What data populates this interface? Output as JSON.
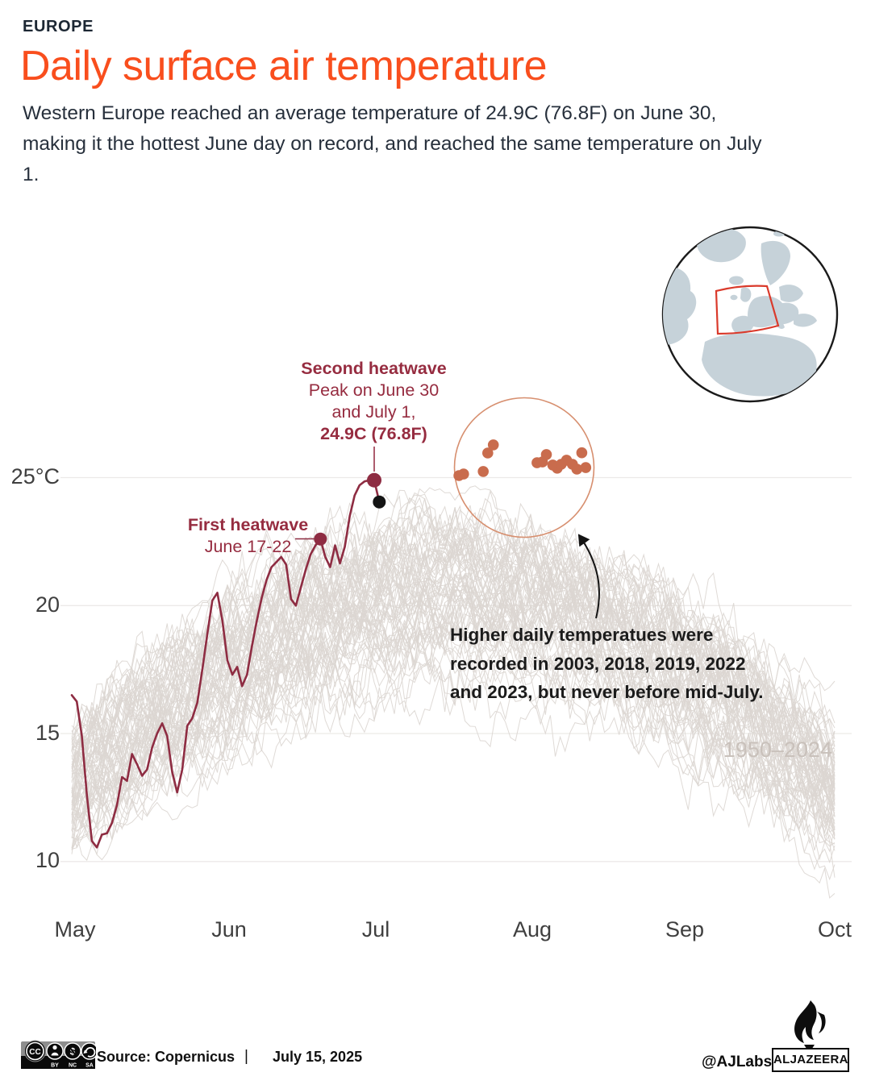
{
  "header": {
    "kicker": "EUROPE",
    "title": "Daily surface air temperature",
    "subtitle": "Western Europe reached an average temperature of 24.9C (76.8F) on June 30, making it the hottest June day on record, and reached the same temperature on July 1."
  },
  "colors": {
    "accent": "#f94e1d",
    "line_2025": "#8e2c42",
    "annotation_text": "#962c40",
    "record_dot": "#c96c4d",
    "highlight_circle": "#d78f6f",
    "background_lines": "#dcd6d2",
    "grid": "#eceae8",
    "axis_text": "#3f3f3f",
    "black_dot": "#141414",
    "range_label": "#c9c1bb",
    "globe_land": "#c6d2d9",
    "globe_box": "#da3a2b"
  },
  "chart_data": {
    "type": "line",
    "title": "Daily surface air temperature",
    "ylabel": "°C",
    "ylim": [
      7,
      26.5
    ],
    "grid": "horizontal only",
    "y_ticks": [
      {
        "label": "25°C",
        "value": 25
      },
      {
        "label": "20",
        "value": 20
      },
      {
        "label": "15",
        "value": 15
      },
      {
        "label": "10",
        "value": 10
      }
    ],
    "x_ticks": [
      "May",
      "Jun",
      "Jul",
      "Aug",
      "Sep",
      "Oct"
    ],
    "background_years": {
      "from": 1950,
      "to": 2024,
      "count": 75,
      "label": "1950–2024",
      "season": "May 1 to Oct 1"
    },
    "series_2025": {
      "name": "2025",
      "unit": "C",
      "day0": "May 1",
      "points": [
        [
          0,
          16.5
        ],
        [
          1,
          16.25
        ],
        [
          2,
          14.9
        ],
        [
          3,
          12.6
        ],
        [
          4,
          10.8
        ],
        [
          5,
          10.55
        ],
        [
          6,
          11.05
        ],
        [
          7,
          11.1
        ],
        [
          8,
          11.5
        ],
        [
          9,
          12.2
        ],
        [
          10,
          13.3
        ],
        [
          11,
          13.15
        ],
        [
          12,
          14.2
        ],
        [
          13,
          13.8
        ],
        [
          14,
          13.35
        ],
        [
          15,
          13.6
        ],
        [
          16,
          14.45
        ],
        [
          17,
          15.0
        ],
        [
          18,
          15.4
        ],
        [
          19,
          14.9
        ],
        [
          20,
          13.5
        ],
        [
          21,
          12.7
        ],
        [
          22,
          13.6
        ],
        [
          23,
          15.3
        ],
        [
          24,
          15.6
        ],
        [
          25,
          16.2
        ],
        [
          26,
          17.5
        ],
        [
          27,
          18.9
        ],
        [
          28,
          20.2
        ],
        [
          29,
          20.5
        ],
        [
          30,
          19.4
        ],
        [
          31,
          17.85
        ],
        [
          32,
          17.3
        ],
        [
          33,
          17.6
        ],
        [
          34,
          16.85
        ],
        [
          35,
          17.3
        ],
        [
          36,
          18.4
        ],
        [
          37,
          19.4
        ],
        [
          38,
          20.3
        ],
        [
          39,
          21.0
        ],
        [
          40,
          21.5
        ],
        [
          41,
          21.7
        ],
        [
          42,
          21.9
        ],
        [
          43,
          21.6
        ],
        [
          44,
          20.25
        ],
        [
          45,
          20.0
        ],
        [
          46,
          20.7
        ],
        [
          47,
          21.4
        ],
        [
          48,
          22.0
        ],
        [
          49,
          22.35
        ],
        [
          50,
          22.6
        ],
        [
          51,
          21.9
        ],
        [
          52,
          21.5
        ],
        [
          53,
          22.35
        ],
        [
          54,
          21.65
        ],
        [
          55,
          22.3
        ],
        [
          56,
          23.5
        ],
        [
          57,
          24.3
        ],
        [
          58,
          24.7
        ],
        [
          59,
          24.85
        ],
        [
          60,
          24.9
        ],
        [
          61,
          24.9
        ],
        [
          62,
          24.05
        ]
      ]
    },
    "markers": {
      "first_heatwave": {
        "day": 50,
        "temp": 22.6
      },
      "second_heatwave": {
        "day": 61,
        "temp": 24.9
      },
      "latest": {
        "day": 62,
        "temp": 24.05
      }
    },
    "record_days": {
      "years": "2003, 2018, 2019, 2022, 2023",
      "points": [
        [
          77.8,
          25.08
        ],
        [
          78.7,
          25.14
        ],
        [
          82.6,
          25.24
        ],
        [
          83.5,
          25.96
        ],
        [
          84.6,
          26.28
        ],
        [
          93.3,
          25.58
        ],
        [
          94.4,
          25.61
        ],
        [
          95.2,
          25.9
        ],
        [
          96.5,
          25.49
        ],
        [
          97.4,
          25.37
        ],
        [
          98.2,
          25.52
        ],
        [
          99.3,
          25.68
        ],
        [
          100.5,
          25.52
        ],
        [
          101.4,
          25.33
        ],
        [
          102.4,
          25.97
        ],
        [
          103.2,
          25.39
        ]
      ]
    }
  },
  "annotations": {
    "second_heatwave": {
      "title": "Second heatwave",
      "line1": "Peak on June 30",
      "line2": "and July 1,",
      "line3": "24.9C (76.8F)"
    },
    "first_heatwave": {
      "title": "First heatwave",
      "line1": "June 17-22"
    },
    "note": {
      "line1": "Higher daily temperatues were",
      "line2": "recorded in 2003, 2018, 2019, 2022",
      "line3": "and 2023, but never before mid-July."
    },
    "range_label": "1950–2024"
  },
  "footer": {
    "license": {
      "cc": "CC",
      "by": "BY",
      "nc": "NC",
      "sa": "SA"
    },
    "source": "Source: Copernicus",
    "separator": "|",
    "date": "July 15, 2025",
    "credit": "@AJLabs",
    "brand": "ALJAZEERA"
  }
}
